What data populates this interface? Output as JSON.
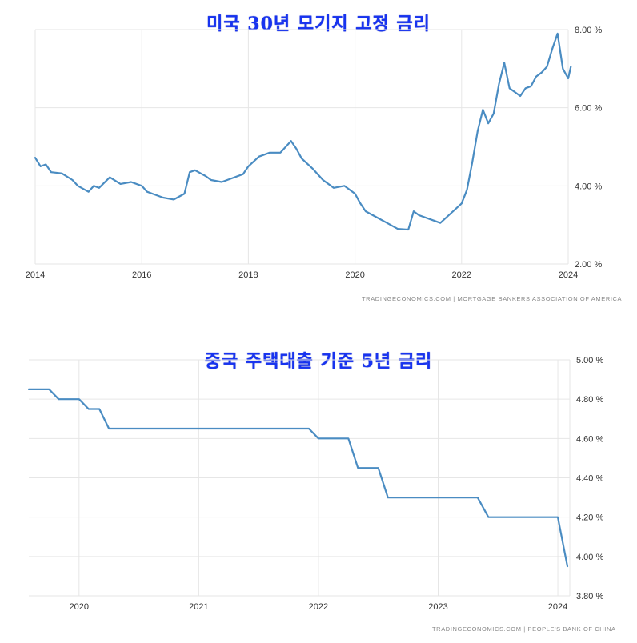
{
  "chart_data": [
    {
      "type": "line",
      "title": "미국 30년 모기지 고정 금리",
      "source": "TRADINGECONOMICS.COM  |  MORTGAGE BANKERS ASSOCIATION OF AMERICA",
      "xlabel": "",
      "ylabel": "",
      "xlim": [
        2014.0,
        2024.0
      ],
      "ylim": [
        2.0,
        8.0
      ],
      "x_ticks": [
        2014,
        2016,
        2018,
        2020,
        2022,
        2024
      ],
      "x_tick_labels": [
        "2014",
        "2016",
        "2018",
        "2020",
        "2022",
        "2024"
      ],
      "y_ticks": [
        2,
        4,
        6,
        8
      ],
      "y_tick_labels": [
        "2.00 %",
        "4.00 %",
        "6.00 %",
        "8.00 %"
      ],
      "grid": true,
      "color": "#4a8cc2",
      "x": [
        2014.0,
        2014.1,
        2014.2,
        2014.3,
        2014.5,
        2014.7,
        2014.8,
        2015.0,
        2015.1,
        2015.2,
        2015.4,
        2015.6,
        2015.8,
        2016.0,
        2016.1,
        2016.2,
        2016.4,
        2016.6,
        2016.8,
        2016.9,
        2017.0,
        2017.2,
        2017.3,
        2017.5,
        2017.7,
        2017.9,
        2018.0,
        2018.2,
        2018.4,
        2018.6,
        2018.8,
        2018.9,
        2019.0,
        2019.2,
        2019.4,
        2019.6,
        2019.8,
        2020.0,
        2020.1,
        2020.2,
        2020.4,
        2020.6,
        2020.8,
        2021.0,
        2021.1,
        2021.2,
        2021.4,
        2021.6,
        2021.8,
        2022.0,
        2022.1,
        2022.2,
        2022.3,
        2022.4,
        2022.5,
        2022.6,
        2022.7,
        2022.8,
        2022.9,
        2023.0,
        2023.1,
        2023.2,
        2023.3,
        2023.4,
        2023.5,
        2023.6,
        2023.7,
        2023.8,
        2023.9,
        2024.0,
        2024.05
      ],
      "y": [
        4.72,
        4.5,
        4.55,
        4.35,
        4.32,
        4.15,
        4.0,
        3.85,
        4.0,
        3.95,
        4.22,
        4.05,
        4.1,
        4.0,
        3.85,
        3.8,
        3.7,
        3.65,
        3.8,
        4.35,
        4.4,
        4.25,
        4.15,
        4.1,
        4.2,
        4.3,
        4.5,
        4.75,
        4.85,
        4.85,
        5.15,
        4.95,
        4.7,
        4.45,
        4.15,
        3.95,
        4.0,
        3.8,
        3.55,
        3.35,
        3.2,
        3.05,
        2.9,
        2.88,
        3.35,
        3.25,
        3.15,
        3.05,
        3.3,
        3.55,
        3.9,
        4.6,
        5.4,
        5.95,
        5.6,
        5.85,
        6.6,
        7.15,
        6.5,
        6.4,
        6.3,
        6.5,
        6.55,
        6.8,
        6.9,
        7.05,
        7.5,
        7.9,
        7.0,
        6.75,
        7.05
      ]
    },
    {
      "type": "line",
      "title": "중국 주택대출 기준 5년 금리",
      "source": "TRADINGECONOMICS.COM  |  PEOPLE'S BANK OF CHINA",
      "xlabel": "",
      "ylabel": "",
      "xlim": [
        2019.58,
        2024.1
      ],
      "ylim": [
        3.8,
        5.0
      ],
      "x_ticks": [
        2020,
        2021,
        2022,
        2023,
        2024
      ],
      "x_tick_labels": [
        "2020",
        "2021",
        "2022",
        "2023",
        "2024"
      ],
      "y_ticks": [
        3.8,
        4.0,
        4.2,
        4.4,
        4.6,
        4.8,
        5.0
      ],
      "y_tick_labels": [
        "3.80 %",
        "4.00 %",
        "4.20 %",
        "4.40 %",
        "4.60 %",
        "4.80 %",
        "5.00 %"
      ],
      "grid": true,
      "color": "#4a8cc2",
      "step": true,
      "x": [
        2019.58,
        2019.75,
        2019.83,
        2020.0,
        2020.08,
        2020.17,
        2020.25,
        2021.92,
        2022.0,
        2022.25,
        2022.33,
        2022.5,
        2022.58,
        2023.33,
        2023.42,
        2023.83,
        2024.0,
        2024.08
      ],
      "y": [
        4.85,
        4.85,
        4.8,
        4.8,
        4.75,
        4.75,
        4.65,
        4.65,
        4.6,
        4.6,
        4.45,
        4.45,
        4.3,
        4.3,
        4.2,
        4.2,
        4.2,
        3.95
      ]
    }
  ]
}
